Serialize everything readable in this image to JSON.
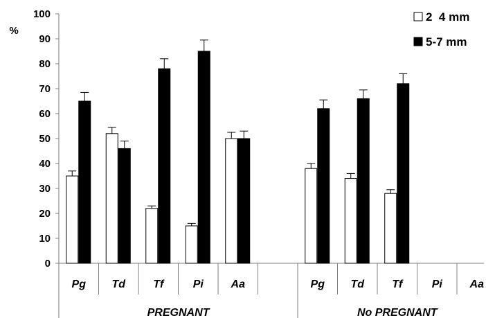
{
  "chart_data": {
    "type": "bar",
    "y_unit_label": "%",
    "ylim": [
      0,
      100
    ],
    "y_ticks": [
      0,
      10,
      20,
      30,
      40,
      50,
      60,
      70,
      80,
      90,
      100
    ],
    "grid": false,
    "legend_position": "top-right",
    "groups": [
      {
        "label": "PREGNANT",
        "categories": [
          "Pg",
          "Td",
          "Tf",
          "Pi",
          "Aa",
          ""
        ]
      },
      {
        "label": "No PREGNANT",
        "categories": [
          "Pg",
          "Td",
          "Tf",
          "Pi",
          "Aa"
        ]
      }
    ],
    "series": [
      {
        "name": "2  4 mm",
        "color": "#ffffff",
        "values": [
          35,
          52,
          22,
          15,
          50,
          null,
          38,
          34,
          28,
          null,
          null
        ],
        "errors": [
          2,
          2.5,
          1,
          1,
          2.5,
          null,
          2,
          2,
          1.5,
          null,
          null
        ]
      },
      {
        "name": "5-7 mm",
        "color": "#000000",
        "values": [
          65,
          46,
          78,
          85,
          50,
          null,
          62,
          66,
          72,
          null,
          null
        ],
        "errors": [
          3.5,
          3,
          4,
          4.5,
          3,
          null,
          3.5,
          3.5,
          4,
          null,
          null
        ]
      }
    ]
  }
}
